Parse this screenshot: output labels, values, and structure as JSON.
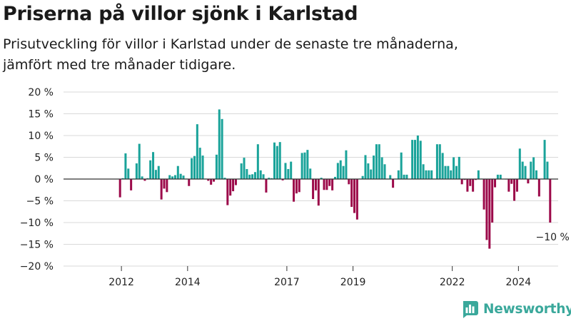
{
  "header": {
    "title": "Priserna på villor sjönk i Karlstad",
    "subtitle_line1": "Prisutveckling för villor i Karlstad under de senaste tre månaderna,",
    "subtitle_line2": "jämfört med tre månader tidigare."
  },
  "colors": {
    "positive": "#1aa39a",
    "negative": "#9c0a4a",
    "grid": "#d9d9d9",
    "zero": "#333333"
  },
  "chart_data": {
    "type": "bar",
    "title": "Priserna på villor sjönk i Karlstad",
    "xlabel": "",
    "ylabel": "",
    "ylim": [
      -20,
      20
    ],
    "y_ticks": [
      20,
      15,
      10,
      5,
      0,
      -5,
      -10,
      -15,
      -20
    ],
    "y_tick_suffix": " %",
    "x_ticks": [
      "2012",
      "2014",
      "2017",
      "2019",
      "2022",
      "2024"
    ],
    "x_tick_positions": [
      2012,
      2014,
      2017,
      2019,
      2022,
      2024
    ],
    "x_range": [
      2010.25,
      2025.2
    ],
    "grid": true,
    "annotation": {
      "text": "−10 %",
      "value": -10
    },
    "start": "2011-12",
    "values": [
      -4.2,
      0.2,
      5.9,
      2.4,
      -2.6,
      0.1,
      3.6,
      8.1,
      0.6,
      -0.4,
      0.2,
      4.3,
      6.2,
      2.1,
      3.0,
      -4.7,
      -2.2,
      -3.0,
      0.9,
      0.6,
      0.9,
      3.0,
      1.2,
      0.8,
      0.1,
      -1.6,
      4.8,
      5.3,
      12.6,
      7.2,
      5.4,
      0.1,
      -0.4,
      -1.3,
      -0.6,
      5.6,
      16.0,
      13.8,
      0.3,
      -6.0,
      -3.8,
      -2.8,
      -1.4,
      0.1,
      3.6,
      4.9,
      2.3,
      1.0,
      1.1,
      1.6,
      8.0,
      2.0,
      1.1,
      -3.1,
      0.3,
      0.2,
      8.4,
      7.6,
      8.5,
      -0.3,
      3.7,
      2.3,
      4.0,
      -5.2,
      -3.3,
      -3.0,
      6.0,
      6.1,
      6.7,
      2.4,
      -4.6,
      -2.6,
      -6.1,
      0.3,
      -2.5,
      -2.5,
      -1.6,
      -2.6,
      0.5,
      3.7,
      4.3,
      3.0,
      6.6,
      -1.2,
      -6.4,
      -7.8,
      -9.3,
      0.1,
      0.7,
      5.5,
      3.6,
      2.2,
      5.4,
      8.0,
      8.0,
      5.0,
      3.4,
      0.1,
      0.9,
      -2.0,
      0.1,
      2.0,
      6.1,
      1.0,
      1.0,
      0.1,
      9.0,
      9.0,
      10.0,
      8.8,
      3.4,
      2.0,
      2.0,
      2.0,
      0.1,
      8.0,
      8.0,
      6.0,
      3.0,
      3.0,
      2.0,
      5.0,
      3.0,
      5.1,
      -1.2,
      -0.2,
      -2.9,
      -1.6,
      -2.9,
      -0.2,
      2.0,
      0.1,
      -7.0,
      -14.0,
      -16.0,
      -10.0,
      -1.9,
      1.0,
      1.0,
      0.0,
      -0.1,
      -2.9,
      -1.1,
      -5.0,
      -2.9,
      7.0,
      4.0,
      3.0,
      -1.0,
      4.0,
      5.0,
      2.0,
      -4.0,
      0.1,
      9.0,
      4.0,
      -10.0
    ]
  },
  "branding": {
    "logo_text": "Newsworthy",
    "logo_icon": "bar-chart-icon"
  }
}
